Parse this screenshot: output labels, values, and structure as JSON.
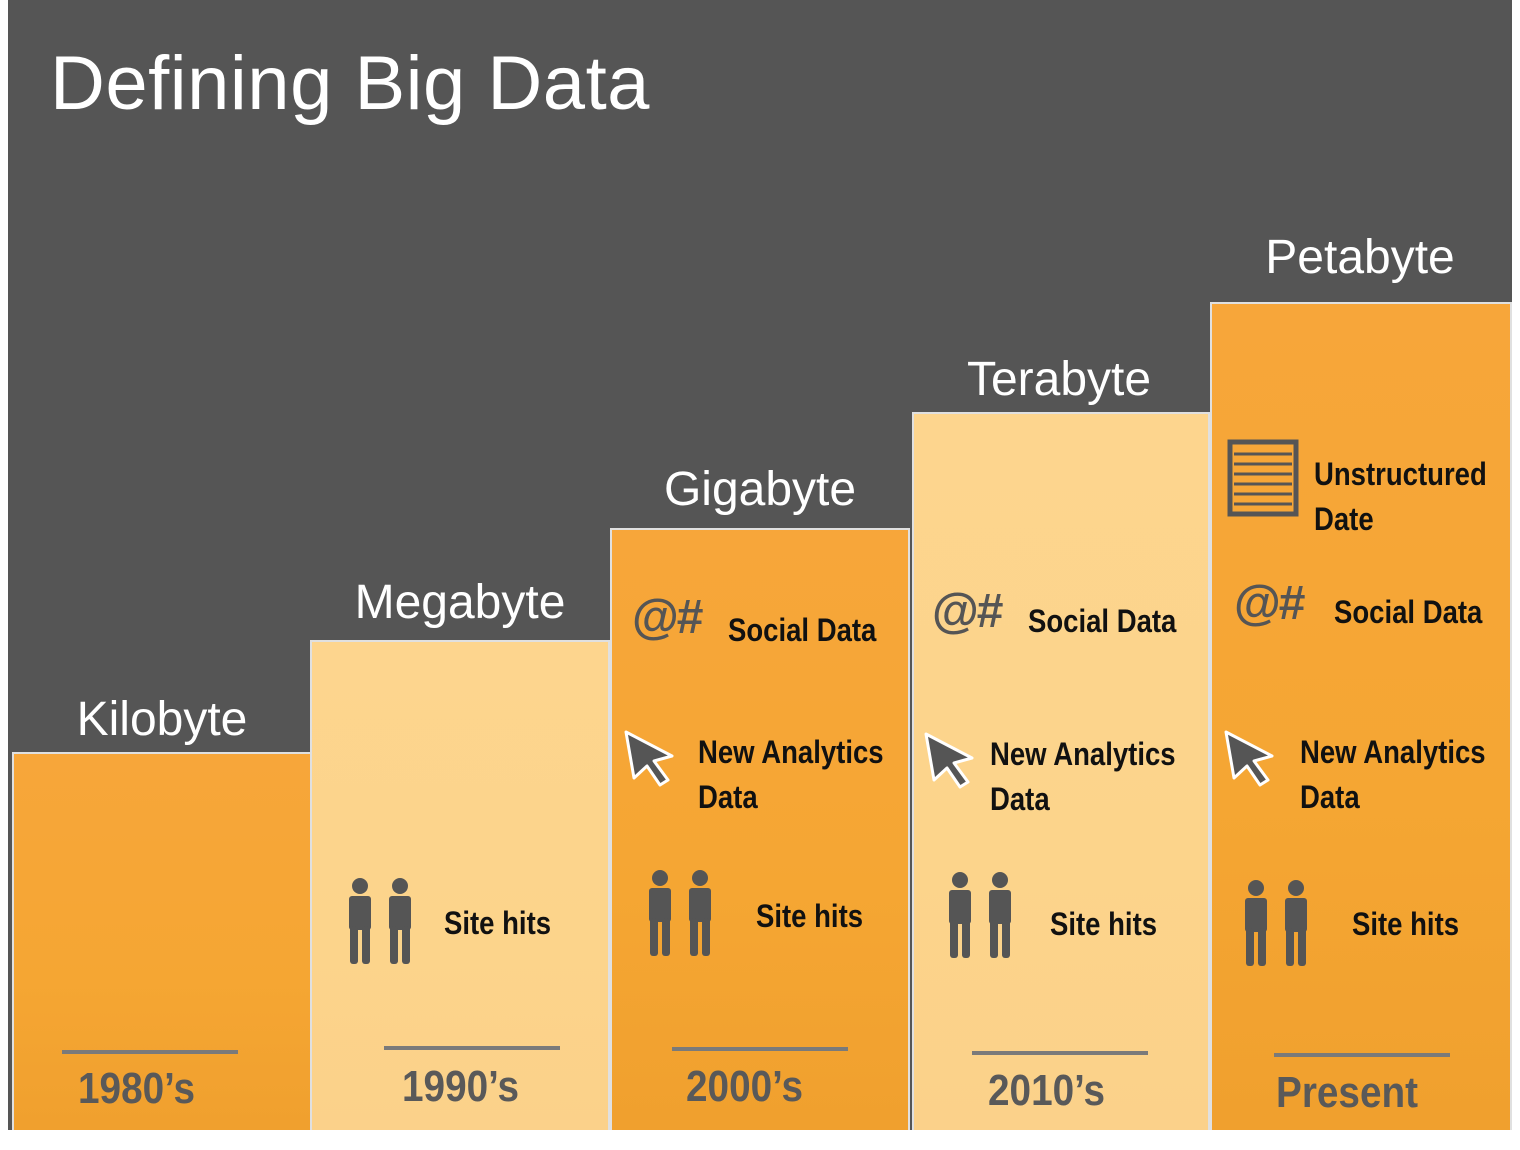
{
  "title": "Defining Big Data",
  "columns": [
    {
      "size": "Kilobyte",
      "era": "1980’s",
      "items": {}
    },
    {
      "size": "Megabyte",
      "era": "1990’s",
      "items": {
        "site_hits": "Site hits"
      }
    },
    {
      "size": "Gigabyte",
      "era": "2000’s",
      "items": {
        "social": "Social Data",
        "analytics_1": "New Analytics",
        "analytics_2": "Data",
        "site_hits": "Site hits"
      }
    },
    {
      "size": "Terabyte",
      "era": "2010’s",
      "items": {
        "social": "Social Data",
        "analytics_1": "New Analytics",
        "analytics_2": "Data",
        "site_hits": "Site hits"
      }
    },
    {
      "size": "Petabyte",
      "era": "Present",
      "items": {
        "unstructured_1": "Unstructured",
        "unstructured_2": "Date",
        "social": "Social Data",
        "analytics_1": "New Analytics",
        "analytics_2": "Data",
        "site_hits": "Site hits"
      }
    }
  ],
  "icons": {
    "social": "at-hash-icon",
    "analytics": "cursor-arrow-icon",
    "site_hits": "people-icon",
    "unstructured": "document-lines-icon",
    "at_hash_text": "@#"
  },
  "colors": {
    "background": "#555555",
    "dark_column": "#f5a633",
    "light_column": "#fcd48b",
    "icon": "#555555"
  }
}
